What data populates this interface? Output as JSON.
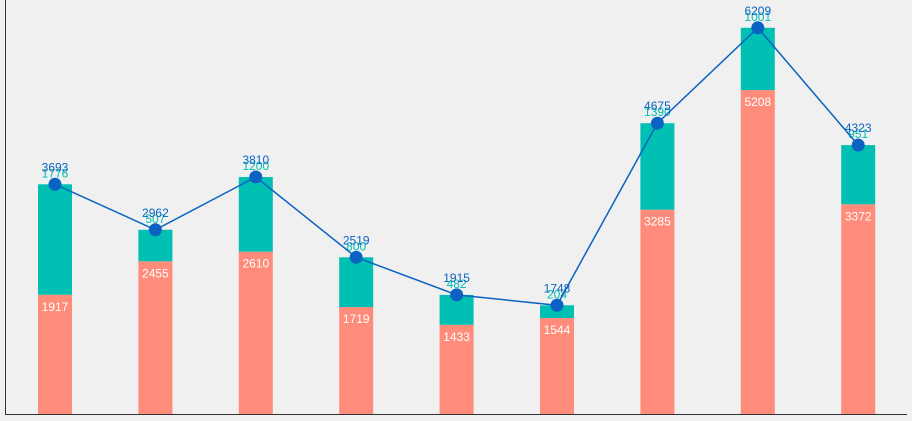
{
  "chart_data": {
    "type": "bar",
    "stacked": true,
    "categories": [
      "",
      "",
      "",
      "",
      "",
      "",
      "",
      "",
      ""
    ],
    "series": [
      {
        "type": "bar",
        "values": [
          1917,
          2455,
          2610,
          1719,
          1433,
          1544,
          3285,
          5208,
          3372
        ],
        "color": "#ff8c7a"
      },
      {
        "type": "bar",
        "values": [
          1776,
          507,
          1200,
          800,
          482,
          204,
          1390,
          1001,
          951
        ],
        "color": "#00bfb3"
      },
      {
        "type": "line",
        "values": [
          3693,
          2962,
          3810,
          2519,
          1915,
          1748,
          4675,
          6209,
          4323
        ],
        "color": "#0a63c2"
      }
    ],
    "ylim": [
      0,
      6700
    ],
    "grid": false,
    "legend": "none",
    "title": "",
    "xlabel": "",
    "ylabel": ""
  }
}
